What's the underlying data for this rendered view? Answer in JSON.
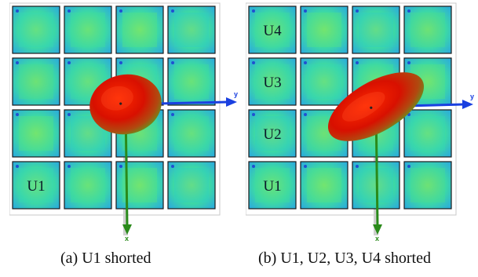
{
  "panels": [
    {
      "caption": "(a) U1 shorted",
      "cell_labels": [
        "",
        "",
        "",
        "",
        "",
        "",
        "",
        "",
        "",
        "",
        "",
        "",
        "U1",
        "",
        "",
        ""
      ],
      "axis_y_label": "y",
      "axis_x_label": "x"
    },
    {
      "caption": "(b) U1, U2, U3, U4 shorted",
      "cell_labels": [
        "U4",
        "",
        "",
        "",
        "U3",
        "",
        "",
        "",
        "U2",
        "",
        "",
        "",
        "U1",
        "",
        "",
        ""
      ],
      "axis_y_label": "y",
      "axis_x_label": "x"
    }
  ],
  "colors": {
    "axis_blue": "#1a40e0",
    "axis_green": "#2a8a1a",
    "lobe_red": "#d81000",
    "frame_gray": "#c8c8c8"
  }
}
